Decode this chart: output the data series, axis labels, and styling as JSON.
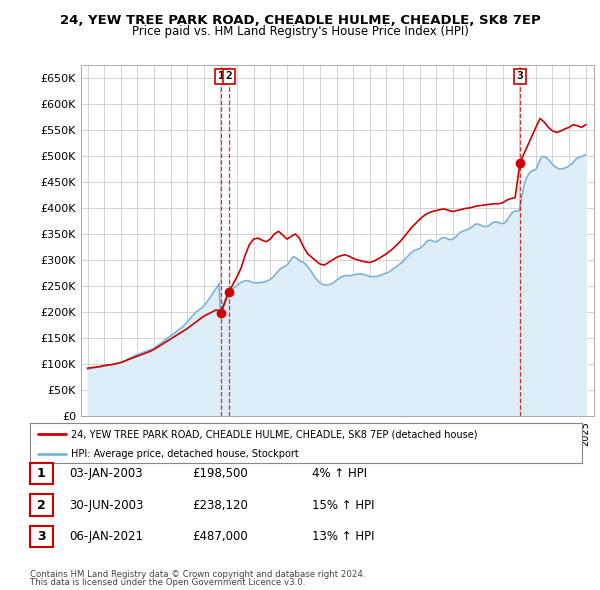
{
  "title": "24, YEW TREE PARK ROAD, CHEADLE HULME, CHEADLE, SK8 7EP",
  "subtitle": "Price paid vs. HM Land Registry's House Price Index (HPI)",
  "legend_label_red": "24, YEW TREE PARK ROAD, CHEADLE HULME, CHEADLE, SK8 7EP (detached house)",
  "legend_label_blue": "HPI: Average price, detached house, Stockport",
  "footer1": "Contains HM Land Registry data © Crown copyright and database right 2024.",
  "footer2": "This data is licensed under the Open Government Licence v3.0.",
  "ylim": [
    0,
    675000
  ],
  "yticks": [
    0,
    50000,
    100000,
    150000,
    200000,
    250000,
    300000,
    350000,
    400000,
    450000,
    500000,
    550000,
    600000,
    650000
  ],
  "ytick_labels": [
    "£0",
    "£50K",
    "£100K",
    "£150K",
    "£200K",
    "£250K",
    "£300K",
    "£350K",
    "£400K",
    "£450K",
    "£500K",
    "£550K",
    "£600K",
    "£650K"
  ],
  "transactions": [
    {
      "num": 1,
      "date": "03-JAN-2003",
      "price": 198500,
      "year": 2003.04,
      "pct": "4%",
      "dir": "↑"
    },
    {
      "num": 2,
      "date": "30-JUN-2003",
      "price": 238120,
      "year": 2003.5,
      "pct": "15%",
      "dir": "↑"
    },
    {
      "num": 3,
      "date": "06-JAN-2021",
      "price": 487000,
      "year": 2021.04,
      "pct": "13%",
      "dir": "↑"
    }
  ],
  "hpi_x": [
    1995.0,
    1995.083,
    1995.167,
    1995.25,
    1995.333,
    1995.417,
    1995.5,
    1995.583,
    1995.667,
    1995.75,
    1995.833,
    1995.917,
    1996.0,
    1996.083,
    1996.167,
    1996.25,
    1996.333,
    1996.417,
    1996.5,
    1996.583,
    1996.667,
    1996.75,
    1996.833,
    1996.917,
    1997.0,
    1997.083,
    1997.167,
    1997.25,
    1997.333,
    1997.417,
    1997.5,
    1997.583,
    1997.667,
    1997.75,
    1997.833,
    1997.917,
    1998.0,
    1998.083,
    1998.167,
    1998.25,
    1998.333,
    1998.417,
    1998.5,
    1998.583,
    1998.667,
    1998.75,
    1998.833,
    1998.917,
    1999.0,
    1999.083,
    1999.167,
    1999.25,
    1999.333,
    1999.417,
    1999.5,
    1999.583,
    1999.667,
    1999.75,
    1999.833,
    1999.917,
    2000.0,
    2000.083,
    2000.167,
    2000.25,
    2000.333,
    2000.417,
    2000.5,
    2000.583,
    2000.667,
    2000.75,
    2000.833,
    2000.917,
    2001.0,
    2001.083,
    2001.167,
    2001.25,
    2001.333,
    2001.417,
    2001.5,
    2001.583,
    2001.667,
    2001.75,
    2001.833,
    2001.917,
    2002.0,
    2002.083,
    2002.167,
    2002.25,
    2002.333,
    2002.417,
    2002.5,
    2002.583,
    2002.667,
    2002.75,
    2002.833,
    2002.917,
    2003.0,
    2003.083,
    2003.167,
    2003.25,
    2003.333,
    2003.417,
    2003.5,
    2003.583,
    2003.667,
    2003.75,
    2003.833,
    2003.917,
    2004.0,
    2004.083,
    2004.167,
    2004.25,
    2004.333,
    2004.417,
    2004.5,
    2004.583,
    2004.667,
    2004.75,
    2004.833,
    2004.917,
    2005.0,
    2005.083,
    2005.167,
    2005.25,
    2005.333,
    2005.417,
    2005.5,
    2005.583,
    2005.667,
    2005.75,
    2005.833,
    2005.917,
    2006.0,
    2006.083,
    2006.167,
    2006.25,
    2006.333,
    2006.417,
    2006.5,
    2006.583,
    2006.667,
    2006.75,
    2006.833,
    2006.917,
    2007.0,
    2007.083,
    2007.167,
    2007.25,
    2007.333,
    2007.417,
    2007.5,
    2007.583,
    2007.667,
    2007.75,
    2007.833,
    2007.917,
    2008.0,
    2008.083,
    2008.167,
    2008.25,
    2008.333,
    2008.417,
    2008.5,
    2008.583,
    2008.667,
    2008.75,
    2008.833,
    2008.917,
    2009.0,
    2009.083,
    2009.167,
    2009.25,
    2009.333,
    2009.417,
    2009.5,
    2009.583,
    2009.667,
    2009.75,
    2009.833,
    2009.917,
    2010.0,
    2010.083,
    2010.167,
    2010.25,
    2010.333,
    2010.417,
    2010.5,
    2010.583,
    2010.667,
    2010.75,
    2010.833,
    2010.917,
    2011.0,
    2011.083,
    2011.167,
    2011.25,
    2011.333,
    2011.417,
    2011.5,
    2011.583,
    2011.667,
    2011.75,
    2011.833,
    2011.917,
    2012.0,
    2012.083,
    2012.167,
    2012.25,
    2012.333,
    2012.417,
    2012.5,
    2012.583,
    2012.667,
    2012.75,
    2012.833,
    2012.917,
    2013.0,
    2013.083,
    2013.167,
    2013.25,
    2013.333,
    2013.417,
    2013.5,
    2013.583,
    2013.667,
    2013.75,
    2013.833,
    2013.917,
    2014.0,
    2014.083,
    2014.167,
    2014.25,
    2014.333,
    2014.417,
    2014.5,
    2014.583,
    2014.667,
    2014.75,
    2014.833,
    2014.917,
    2015.0,
    2015.083,
    2015.167,
    2015.25,
    2015.333,
    2015.417,
    2015.5,
    2015.583,
    2015.667,
    2015.75,
    2015.833,
    2015.917,
    2016.0,
    2016.083,
    2016.167,
    2016.25,
    2016.333,
    2016.417,
    2016.5,
    2016.583,
    2016.667,
    2016.75,
    2016.833,
    2016.917,
    2017.0,
    2017.083,
    2017.167,
    2017.25,
    2017.333,
    2017.417,
    2017.5,
    2017.583,
    2017.667,
    2017.75,
    2017.833,
    2017.917,
    2018.0,
    2018.083,
    2018.167,
    2018.25,
    2018.333,
    2018.417,
    2018.5,
    2018.583,
    2018.667,
    2018.75,
    2018.833,
    2018.917,
    2019.0,
    2019.083,
    2019.167,
    2019.25,
    2019.333,
    2019.417,
    2019.5,
    2019.583,
    2019.667,
    2019.75,
    2019.833,
    2019.917,
    2020.0,
    2020.083,
    2020.167,
    2020.25,
    2020.333,
    2020.417,
    2020.5,
    2020.583,
    2020.667,
    2020.75,
    2020.833,
    2020.917,
    2021.0,
    2021.083,
    2021.167,
    2021.25,
    2021.333,
    2021.417,
    2021.5,
    2021.583,
    2021.667,
    2021.75,
    2021.833,
    2021.917,
    2022.0,
    2022.083,
    2022.167,
    2022.25,
    2022.333,
    2022.417,
    2022.5,
    2022.583,
    2022.667,
    2022.75,
    2022.833,
    2022.917,
    2023.0,
    2023.083,
    2023.167,
    2023.25,
    2023.333,
    2023.417,
    2023.5,
    2023.583,
    2023.667,
    2023.75,
    2023.833,
    2023.917,
    2024.0,
    2024.083,
    2024.167,
    2024.25,
    2024.333,
    2024.417,
    2024.5,
    2024.583,
    2024.667,
    2024.75,
    2024.833,
    2024.917,
    2025.0
  ],
  "hpi_y": [
    90000,
    90500,
    91000,
    91500,
    92000,
    92500,
    93000,
    93500,
    94000,
    94500,
    95000,
    95500,
    96000,
    96500,
    97000,
    97500,
    98000,
    98500,
    99000,
    99500,
    100000,
    100500,
    101000,
    101500,
    102000,
    103000,
    104000,
    105500,
    107000,
    108500,
    110000,
    111500,
    113000,
    114500,
    116000,
    117000,
    118000,
    119000,
    120000,
    121000,
    122000,
    123000,
    124000,
    125000,
    126000,
    127000,
    128000,
    129000,
    130000,
    132000,
    134000,
    136000,
    138000,
    140000,
    142000,
    144000,
    146000,
    148000,
    150000,
    152000,
    154000,
    156000,
    158000,
    160000,
    162000,
    164000,
    166000,
    168000,
    170000,
    172000,
    175000,
    178000,
    181000,
    184000,
    187000,
    190000,
    193000,
    196000,
    199000,
    201000,
    203000,
    205000,
    207000,
    209000,
    212000,
    215000,
    218000,
    222000,
    226000,
    230000,
    234000,
    238000,
    242000,
    246000,
    250000,
    254000,
    195000,
    205000,
    215000,
    222000,
    228000,
    233000,
    237000,
    240000,
    242000,
    245000,
    247000,
    249000,
    251000,
    253000,
    255000,
    257000,
    258000,
    259000,
    260000,
    260000,
    260000,
    259000,
    258000,
    257000,
    256000,
    256000,
    256000,
    256000,
    256000,
    257000,
    257000,
    257000,
    258000,
    259000,
    260000,
    261000,
    263000,
    265000,
    267000,
    270000,
    273000,
    276000,
    279000,
    282000,
    284000,
    286000,
    287000,
    288000,
    290000,
    293000,
    297000,
    301000,
    305000,
    306000,
    305000,
    303000,
    301000,
    299000,
    297000,
    296000,
    295000,
    293000,
    290000,
    287000,
    284000,
    280000,
    276000,
    272000,
    268000,
    264000,
    261000,
    258000,
    256000,
    254000,
    253000,
    252000,
    252000,
    252000,
    252000,
    253000,
    254000,
    255000,
    257000,
    259000,
    261000,
    263000,
    265000,
    267000,
    268000,
    269000,
    270000,
    270000,
    270000,
    270000,
    270000,
    270000,
    271000,
    272000,
    272000,
    273000,
    273000,
    273000,
    273000,
    272000,
    272000,
    271000,
    270000,
    269000,
    268000,
    268000,
    268000,
    268000,
    268000,
    268000,
    269000,
    270000,
    271000,
    272000,
    273000,
    274000,
    275000,
    276000,
    277000,
    279000,
    281000,
    283000,
    285000,
    287000,
    289000,
    291000,
    293000,
    295000,
    297000,
    300000,
    303000,
    306000,
    309000,
    312000,
    314000,
    316000,
    318000,
    319000,
    320000,
    321000,
    322000,
    324000,
    326000,
    329000,
    332000,
    335000,
    337000,
    338000,
    338000,
    337000,
    336000,
    335000,
    335000,
    336000,
    338000,
    340000,
    342000,
    343000,
    343000,
    342000,
    341000,
    340000,
    339000,
    339000,
    340000,
    342000,
    344000,
    347000,
    350000,
    352000,
    354000,
    355000,
    356000,
    357000,
    358000,
    359000,
    360000,
    362000,
    364000,
    366000,
    368000,
    369000,
    369000,
    368000,
    367000,
    366000,
    365000,
    364000,
    364000,
    365000,
    366000,
    368000,
    370000,
    372000,
    373000,
    373000,
    373000,
    372000,
    371000,
    370000,
    370000,
    371000,
    373000,
    376000,
    380000,
    384000,
    388000,
    391000,
    393000,
    394000,
    394000,
    394000,
    394000,
    410000,
    425000,
    438000,
    448000,
    456000,
    462000,
    466000,
    469000,
    471000,
    472000,
    473000,
    474000,
    480000,
    486000,
    492000,
    497000,
    499000,
    499000,
    498000,
    496000,
    493000,
    490000,
    487000,
    484000,
    481000,
    479000,
    477000,
    476000,
    475000,
    475000,
    475000,
    476000,
    477000,
    478000,
    479000,
    481000,
    483000,
    485000,
    488000,
    491000,
    494000,
    496000,
    497000,
    498000,
    499000,
    500000,
    501000,
    502000
  ],
  "red_x": [
    1995.0,
    1995.25,
    1995.5,
    1995.75,
    1996.0,
    1996.25,
    1996.5,
    1996.75,
    1997.0,
    1997.25,
    1997.5,
    1997.75,
    1998.0,
    1998.25,
    1998.5,
    1998.75,
    1999.0,
    1999.25,
    1999.5,
    1999.75,
    2000.0,
    2000.25,
    2000.5,
    2000.75,
    2001.0,
    2001.25,
    2001.5,
    2001.75,
    2002.0,
    2002.25,
    2002.5,
    2002.75,
    2003.04,
    2003.5,
    2004.0,
    2004.25,
    2004.5,
    2004.75,
    2005.0,
    2005.25,
    2005.5,
    2005.75,
    2006.0,
    2006.25,
    2006.5,
    2006.75,
    2007.0,
    2007.25,
    2007.5,
    2007.75,
    2008.0,
    2008.25,
    2008.5,
    2008.75,
    2009.0,
    2009.25,
    2009.5,
    2009.75,
    2010.0,
    2010.25,
    2010.5,
    2010.75,
    2011.0,
    2011.25,
    2011.5,
    2011.75,
    2012.0,
    2012.25,
    2012.5,
    2012.75,
    2013.0,
    2013.25,
    2013.5,
    2013.75,
    2014.0,
    2014.25,
    2014.5,
    2014.75,
    2015.0,
    2015.25,
    2015.5,
    2015.75,
    2016.0,
    2016.25,
    2016.5,
    2016.75,
    2017.0,
    2017.25,
    2017.5,
    2017.75,
    2018.0,
    2018.25,
    2018.5,
    2018.75,
    2019.0,
    2019.25,
    2019.5,
    2019.75,
    2020.0,
    2020.25,
    2020.5,
    2020.75,
    2021.04,
    2022.0,
    2022.25,
    2022.5,
    2022.75,
    2023.0,
    2023.25,
    2023.5,
    2023.75,
    2024.0,
    2024.25,
    2024.5,
    2024.75,
    2025.0
  ],
  "red_y": [
    92000,
    93000,
    94000,
    95000,
    97000,
    98000,
    99000,
    101000,
    103000,
    106000,
    109000,
    112000,
    115000,
    118000,
    121000,
    124000,
    128000,
    133000,
    138000,
    143000,
    148000,
    153000,
    158000,
    163000,
    168000,
    174000,
    180000,
    186000,
    192000,
    196000,
    200000,
    204000,
    198500,
    238120,
    268000,
    285000,
    310000,
    330000,
    340000,
    342000,
    338000,
    335000,
    340000,
    350000,
    355000,
    348000,
    340000,
    345000,
    350000,
    342000,
    325000,
    312000,
    305000,
    298000,
    292000,
    290000,
    295000,
    300000,
    305000,
    308000,
    310000,
    307000,
    303000,
    300000,
    298000,
    296000,
    295000,
    298000,
    302000,
    307000,
    312000,
    318000,
    325000,
    333000,
    342000,
    352000,
    362000,
    370000,
    378000,
    385000,
    390000,
    393000,
    395000,
    397000,
    398000,
    395000,
    393000,
    395000,
    397000,
    399000,
    400000,
    402000,
    404000,
    405000,
    406000,
    407000,
    408000,
    408000,
    410000,
    415000,
    418000,
    420000,
    487000,
    555000,
    572000,
    565000,
    555000,
    548000,
    545000,
    548000,
    552000,
    555000,
    560000,
    558000,
    555000,
    560000
  ],
  "red_color": "#cc0000",
  "blue_color": "#7eb3d8",
  "blue_fill": "#ddeef8",
  "grid_color": "#cccccc",
  "background_color": "#ffffff"
}
